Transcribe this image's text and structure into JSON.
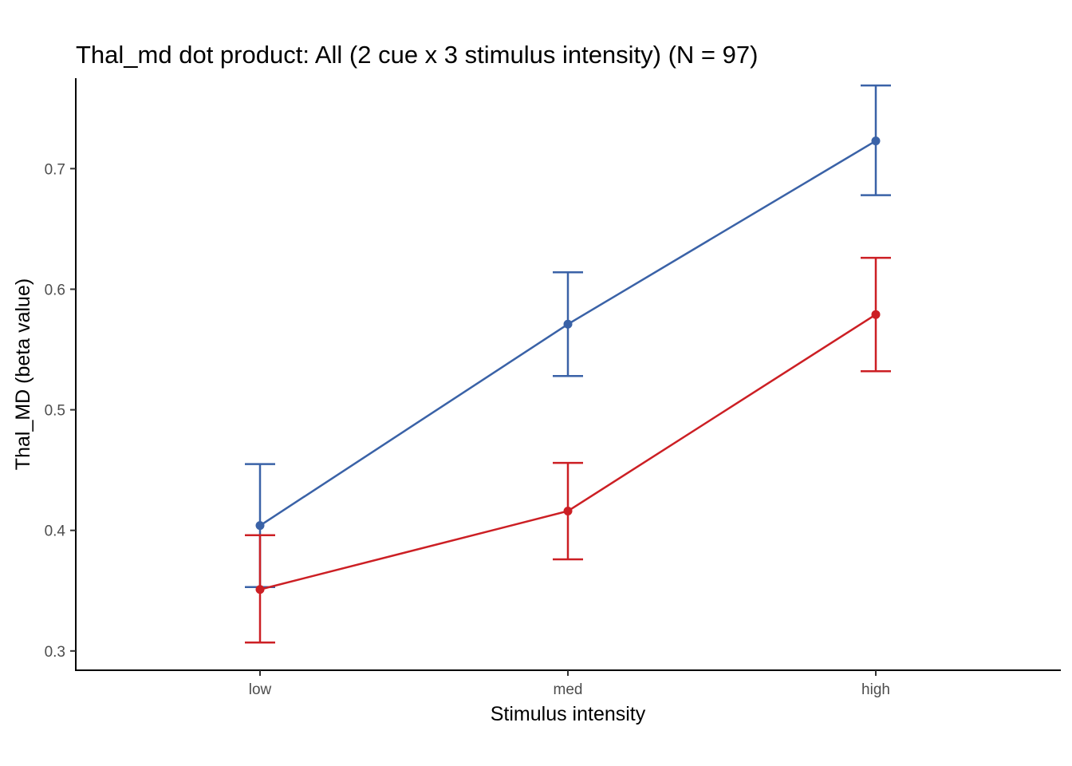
{
  "chart_data": {
    "type": "line",
    "title": "Thal_md dot product: All (2 cue x 3 stimulus intensity) (N = 97)",
    "xlabel": "Stimulus intensity",
    "ylabel": "Thal_MD  (beta value)",
    "categories": [
      "low",
      "med",
      "high"
    ],
    "yticks": [
      0.3,
      0.4,
      0.5,
      0.6,
      0.7
    ],
    "ylim": [
      0.284,
      0.775
    ],
    "grid": false,
    "legend": "none",
    "series": [
      {
        "color": "#3A62A7",
        "values": [
          0.404,
          0.571,
          0.723
        ],
        "lower": [
          0.353,
          0.528,
          0.678
        ],
        "upper": [
          0.455,
          0.614,
          0.769
        ]
      },
      {
        "color": "#CC1F24",
        "values": [
          0.351,
          0.416,
          0.579
        ],
        "lower": [
          0.307,
          0.376,
          0.532
        ],
        "upper": [
          0.396,
          0.456,
          0.626
        ]
      }
    ]
  }
}
